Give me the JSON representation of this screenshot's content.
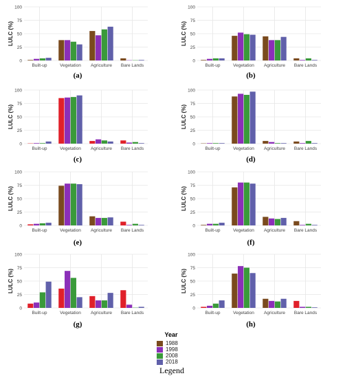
{
  "colors": {
    "1988": "#7a4a1e",
    "1998": "#8b2fb8",
    "2008": "#3a9a3a",
    "2018": "#6060aa",
    "red_variant": "#e0202a",
    "grid": "#e6e6e6",
    "axis_text": "#444444"
  },
  "chart_data": [
    {
      "type": "bar",
      "label": "(a)",
      "categories": [
        "Built-up",
        "Vegetation",
        "Agriculture",
        "Bare Lands"
      ],
      "ylabel": "LULC (%)",
      "ylim": [
        0,
        100
      ],
      "yticks": [
        0,
        25,
        50,
        75,
        100
      ],
      "grid": true,
      "series": [
        {
          "name": "1988",
          "values": [
            1,
            38,
            55,
            4
          ]
        },
        {
          "name": "1998",
          "values": [
            3,
            38,
            47,
            0.5
          ]
        },
        {
          "name": "2008",
          "values": [
            4,
            35,
            58,
            0.5
          ]
        },
        {
          "name": "2018",
          "values": [
            5,
            30,
            63,
            1
          ]
        }
      ]
    },
    {
      "type": "bar",
      "label": "(b)",
      "categories": [
        "Built-up",
        "Vegetation",
        "Agriculture",
        "Bare Lands"
      ],
      "ylabel": "LULC (%)",
      "ylim": [
        0,
        100
      ],
      "yticks": [
        0,
        25,
        50,
        75,
        100
      ],
      "grid": true,
      "series": [
        {
          "name": "1988",
          "values": [
            1,
            46,
            45,
            4
          ]
        },
        {
          "name": "1998",
          "values": [
            3,
            52,
            38,
            1
          ]
        },
        {
          "name": "2008",
          "values": [
            4,
            49,
            38,
            4
          ]
        },
        {
          "name": "2018",
          "values": [
            4,
            48,
            44,
            1
          ]
        }
      ]
    },
    {
      "type": "bar",
      "label": "(c)",
      "categories": [
        "Built-up",
        "Vegetation",
        "Agriculture",
        "Bare Lands"
      ],
      "ylabel": "LULC (%)",
      "ylim": [
        0,
        100
      ],
      "yticks": [
        0,
        25,
        50,
        75,
        100
      ],
      "grid": true,
      "series": [
        {
          "name": "1988",
          "values": [
            0.5,
            85,
            5,
            6
          ]
        },
        {
          "name": "1998",
          "values": [
            1,
            86,
            8,
            2
          ]
        },
        {
          "name": "2008",
          "values": [
            1,
            87,
            6,
            3
          ]
        },
        {
          "name": "2018",
          "values": [
            4,
            90,
            4,
            1
          ]
        }
      ]
    },
    {
      "type": "bar",
      "label": "(d)",
      "categories": [
        "Built-up",
        "Vegetation",
        "Agriculture",
        "Bare Lands"
      ],
      "ylabel": "LULC (%)",
      "ylim": [
        0,
        100
      ],
      "yticks": [
        0,
        25,
        50,
        75,
        100
      ],
      "grid": true,
      "series": [
        {
          "name": "1988",
          "values": [
            0.5,
            88,
            5,
            4
          ]
        },
        {
          "name": "1998",
          "values": [
            1,
            93,
            3,
            1
          ]
        },
        {
          "name": "2008",
          "values": [
            1,
            91,
            1,
            5
          ]
        },
        {
          "name": "2018",
          "values": [
            1,
            97,
            1,
            1
          ]
        }
      ]
    },
    {
      "type": "bar",
      "label": "(e)",
      "categories": [
        "Built-up",
        "Vegetation",
        "Agriculture",
        "Bare Lands"
      ],
      "ylabel": "LULC (%)",
      "ylim": [
        0,
        100
      ],
      "yticks": [
        0,
        25,
        50,
        75,
        100
      ],
      "grid": true,
      "series": [
        {
          "name": "1988",
          "values": [
            2,
            74,
            17,
            7
          ]
        },
        {
          "name": "1998",
          "values": [
            3,
            78,
            14,
            1
          ]
        },
        {
          "name": "2008",
          "values": [
            4,
            78,
            14,
            3
          ]
        },
        {
          "name": "2018",
          "values": [
            5,
            77,
            15,
            1
          ]
        }
      ]
    },
    {
      "type": "bar",
      "label": "(f)",
      "categories": [
        "Built-up",
        "Vegetation",
        "Agriculture",
        "Bare Lands"
      ],
      "ylabel": "LULC (%)",
      "ylim": [
        0,
        100
      ],
      "yticks": [
        0,
        25,
        50,
        75,
        100
      ],
      "grid": true,
      "series": [
        {
          "name": "1988",
          "values": [
            1,
            71,
            16,
            8
          ]
        },
        {
          "name": "1998",
          "values": [
            3,
            80,
            13,
            1
          ]
        },
        {
          "name": "2008",
          "values": [
            3,
            80,
            12,
            3
          ]
        },
        {
          "name": "2018",
          "values": [
            5,
            78,
            14,
            1
          ]
        }
      ]
    },
    {
      "type": "bar",
      "label": "(g)",
      "categories": [
        "Built-up",
        "Vegetation",
        "Agriculture",
        "Bare Lands"
      ],
      "ylabel": "LULC (%)",
      "ylim": [
        0,
        100
      ],
      "yticks": [
        0,
        25,
        50,
        75,
        100
      ],
      "grid": true,
      "series": [
        {
          "name": "1988",
          "values": [
            8,
            36,
            22,
            33
          ]
        },
        {
          "name": "1998",
          "values": [
            10,
            69,
            14,
            6
          ]
        },
        {
          "name": "2008",
          "values": [
            29,
            56,
            14,
            0.5
          ]
        },
        {
          "name": "2018",
          "values": [
            49,
            20,
            28,
            2
          ]
        }
      ]
    },
    {
      "type": "bar",
      "label": "(h)",
      "categories": [
        "Built-up",
        "Vegetation",
        "Agriculture",
        "Bare Lands"
      ],
      "ylabel": "LULC (%)",
      "ylim": [
        0,
        100
      ],
      "yticks": [
        0,
        25,
        50,
        75,
        100
      ],
      "grid": true,
      "series": [
        {
          "name": "1988",
          "values": [
            2,
            64,
            17,
            13
          ]
        },
        {
          "name": "1998",
          "values": [
            4,
            78,
            13,
            2
          ]
        },
        {
          "name": "2008",
          "values": [
            8,
            75,
            12,
            2
          ]
        },
        {
          "name": "2018",
          "values": [
            14,
            65,
            17,
            1
          ]
        }
      ]
    }
  ],
  "legend": {
    "title": "Year",
    "items": [
      "1988",
      "1998",
      "2008",
      "2018"
    ],
    "caption": "Legend"
  }
}
